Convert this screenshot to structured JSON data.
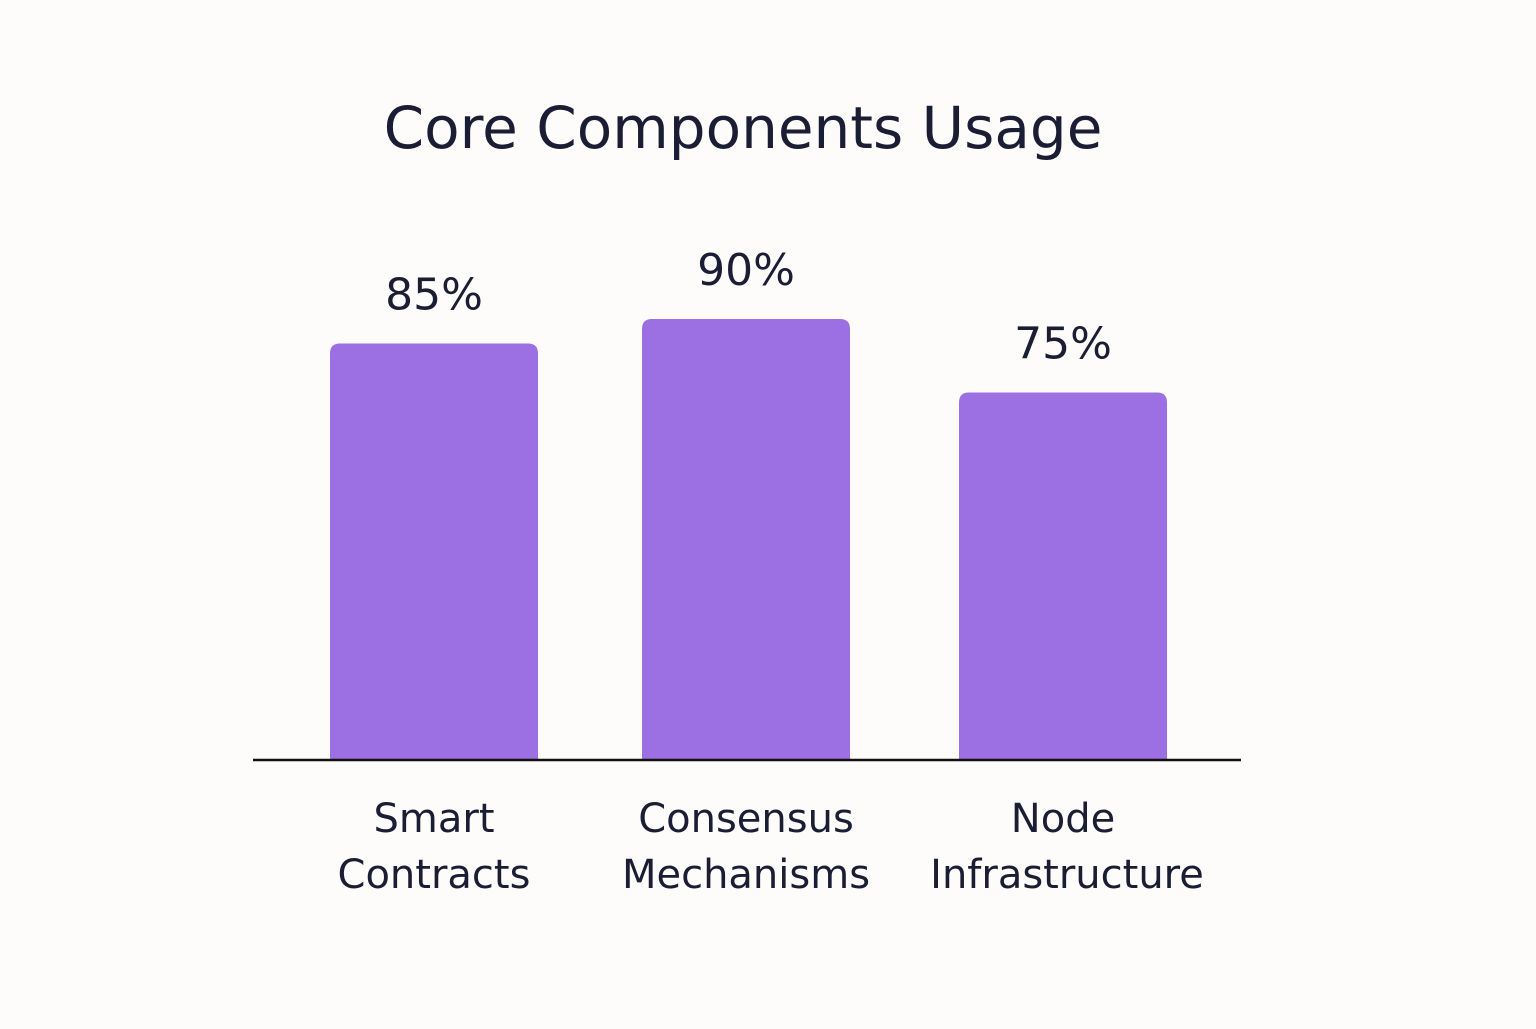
{
  "chart_data": {
    "type": "bar",
    "title": "Core Components Usage",
    "xlabel": "",
    "ylabel": "",
    "categories": [
      "Smart Contracts",
      "Consensus Mechanisms",
      "Node Infrastructure"
    ],
    "category_lines": [
      [
        "Smart",
        "Contracts"
      ],
      [
        "Consensus",
        "Mechanisms"
      ],
      [
        "Node",
        "Infrastructure"
      ]
    ],
    "values": [
      85,
      90,
      75
    ],
    "value_labels": [
      "85%",
      "90%",
      "75%"
    ],
    "grid": false,
    "legend": "none"
  },
  "colors": {
    "bar": "#9c6fe2",
    "text": "#1a1d33",
    "axis": "#111111",
    "background": "#fdfcfa"
  }
}
